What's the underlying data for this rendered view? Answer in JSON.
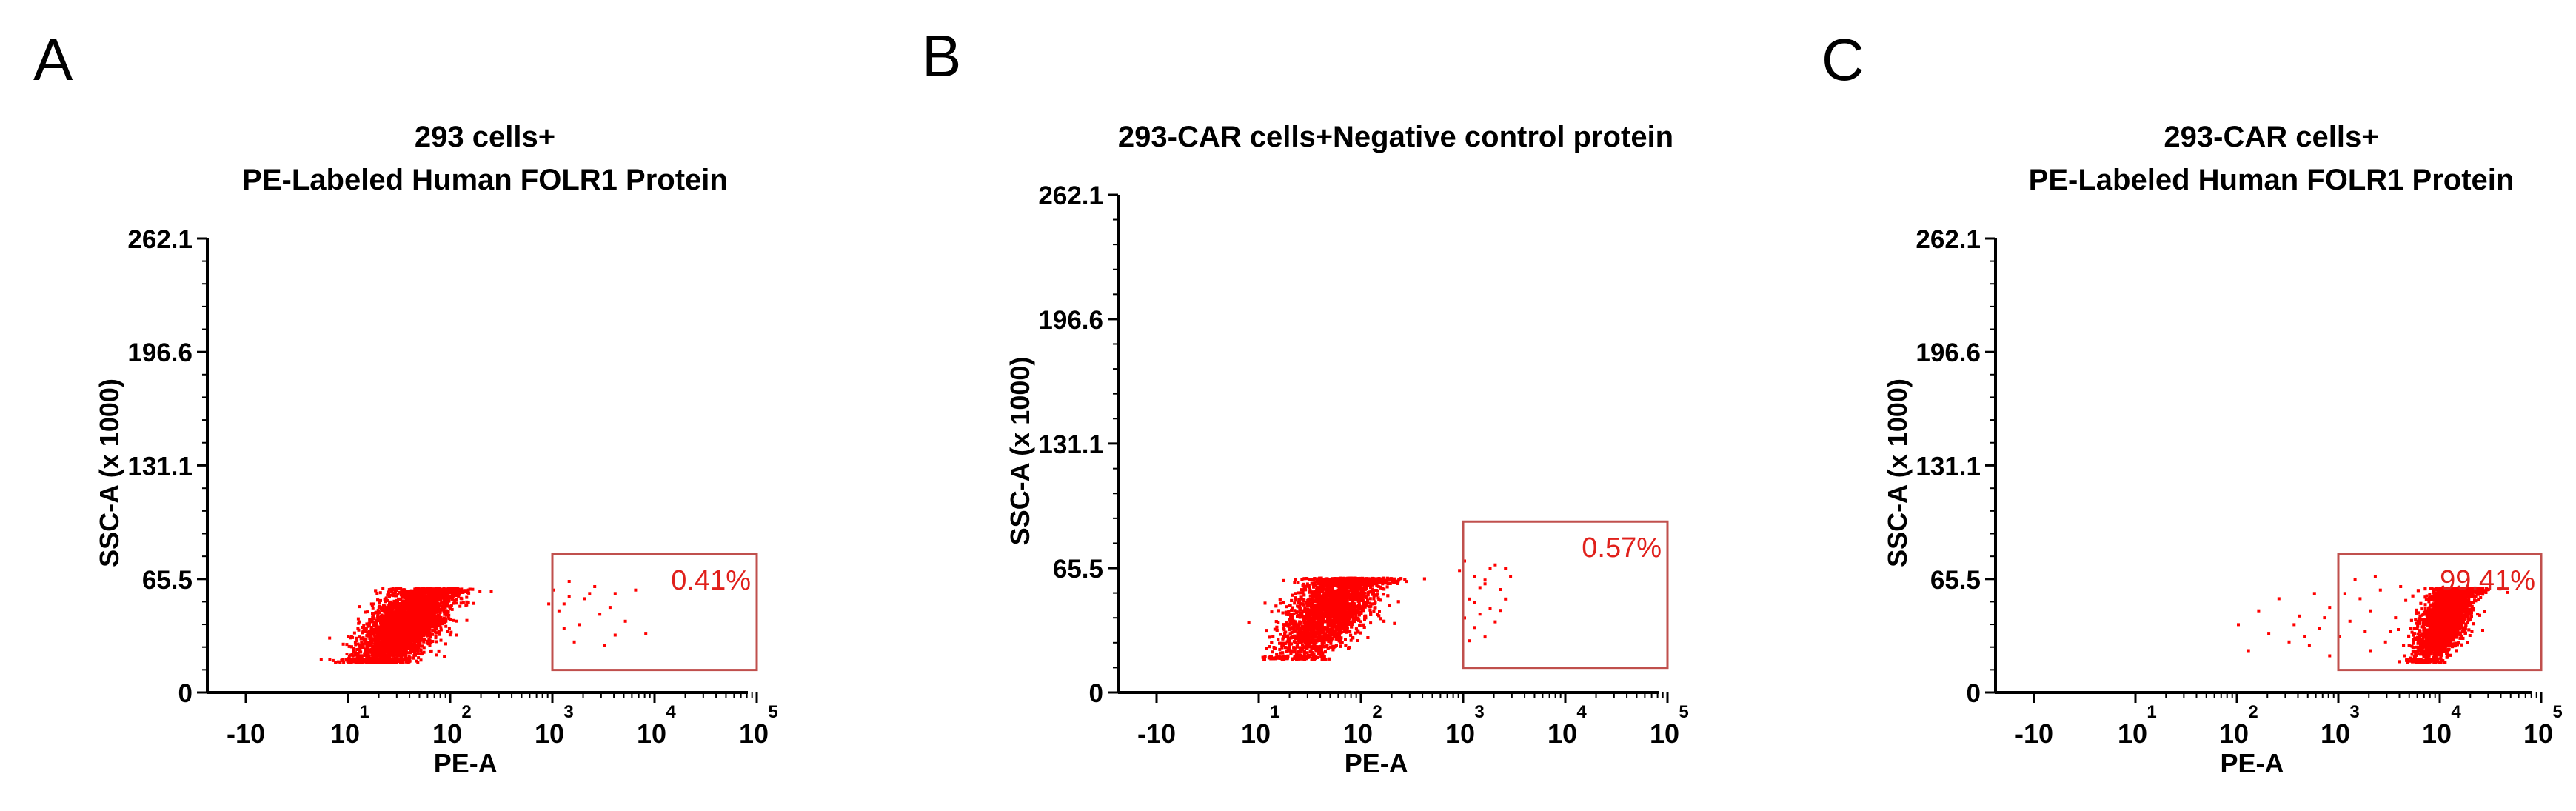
{
  "panels": [
    {
      "letter": "A"
    },
    {
      "letter": "B"
    },
    {
      "letter": "C"
    }
  ],
  "chart_data": [
    {
      "type": "scatter",
      "title_lines": [
        "293 cells+",
        "PE-Labeled Human FOLR1 Protein"
      ],
      "xlabel": "PE-A",
      "ylabel": "SSC-A (x 1000)",
      "x_scale": "log",
      "xlim": [
        "-10",
        100000
      ],
      "x_ticks": [
        {
          "base": "-10",
          "exp": ""
        },
        {
          "base": "10",
          "exp": "1"
        },
        {
          "base": "10",
          "exp": "2"
        },
        {
          "base": "10",
          "exp": "3"
        },
        {
          "base": "10",
          "exp": "4"
        },
        {
          "base": "10",
          "exp": "5"
        }
      ],
      "ylim": [
        0,
        262.1
      ],
      "y_ticks": [
        "0",
        "65.5",
        "131.1",
        "196.6",
        "262.1"
      ],
      "gate": {
        "x": [
          1000,
          100000
        ],
        "y": [
          13,
          80
        ],
        "label": "0.41%"
      },
      "point_color": "#ff0000",
      "gate_color": "#c0504d",
      "population": {
        "center_log_x": 1.55,
        "center_y": 40,
        "spread_log_x": 0.22,
        "spread_y": 13,
        "main_count": 4200,
        "sparse_points": [
          [
            3.1,
            52
          ],
          [
            3.3,
            55
          ],
          [
            3.45,
            46
          ],
          [
            3.6,
            58
          ],
          [
            3.9,
            35
          ],
          [
            3.15,
            65
          ],
          [
            3.25,
            40
          ],
          [
            3.5,
            28
          ],
          [
            3.05,
            48
          ],
          [
            3.4,
            62
          ],
          [
            3.7,
            42
          ],
          [
            3.2,
            30
          ],
          [
            3.35,
            58
          ],
          [
            3.8,
            60
          ],
          [
            3.1,
            38
          ],
          [
            2.95,
            52
          ],
          [
            3.0,
            60
          ],
          [
            3.6,
            34
          ],
          [
            3.15,
            56
          ],
          [
            3.55,
            50
          ]
        ]
      }
    },
    {
      "type": "scatter",
      "title_lines": [
        "293-CAR cells+Negative control protein"
      ],
      "xlabel": "PE-A",
      "ylabel": "SSC-A (x 1000)",
      "x_scale": "log",
      "xlim": [
        "-10",
        100000
      ],
      "x_ticks": [
        {
          "base": "-10",
          "exp": ""
        },
        {
          "base": "10",
          "exp": "1"
        },
        {
          "base": "10",
          "exp": "2"
        },
        {
          "base": "10",
          "exp": "3"
        },
        {
          "base": "10",
          "exp": "4"
        },
        {
          "base": "10",
          "exp": "5"
        }
      ],
      "ylim": [
        0,
        262.1
      ],
      "y_ticks": [
        "0",
        "65.5",
        "131.1",
        "196.6",
        "262.1"
      ],
      "gate": {
        "x": [
          1000,
          100000
        ],
        "y": [
          13,
          90
        ],
        "label": "0.57%"
      },
      "point_color": "#ff0000",
      "gate_color": "#c0504d",
      "population": {
        "center_log_x": 1.7,
        "center_y": 46,
        "spread_log_x": 0.24,
        "spread_y": 14,
        "main_count": 4500,
        "sparse_points": [
          [
            3.0,
            70
          ],
          [
            3.1,
            62
          ],
          [
            3.2,
            58
          ],
          [
            3.3,
            68
          ],
          [
            3.4,
            66
          ],
          [
            3.05,
            50
          ],
          [
            3.15,
            42
          ],
          [
            3.25,
            45
          ],
          [
            3.1,
            35
          ],
          [
            3.2,
            30
          ],
          [
            3.35,
            55
          ],
          [
            3.0,
            40
          ],
          [
            3.45,
            62
          ],
          [
            3.3,
            38
          ],
          [
            3.1,
            48
          ],
          [
            2.95,
            65
          ],
          [
            3.2,
            60
          ],
          [
            3.05,
            28
          ],
          [
            3.4,
            50
          ],
          [
            3.15,
            56
          ],
          [
            3.25,
            66
          ],
          [
            3.35,
            44
          ]
        ]
      }
    },
    {
      "type": "scatter",
      "title_lines": [
        "293-CAR cells+",
        "PE-Labeled Human FOLR1 Protein"
      ],
      "xlabel": "PE-A",
      "ylabel": "SSC-A (x 1000)",
      "x_scale": "log",
      "xlim": [
        "-10",
        100000
      ],
      "x_ticks": [
        {
          "base": "-10",
          "exp": ""
        },
        {
          "base": "10",
          "exp": "1"
        },
        {
          "base": "10",
          "exp": "2"
        },
        {
          "base": "10",
          "exp": "3"
        },
        {
          "base": "10",
          "exp": "4"
        },
        {
          "base": "10",
          "exp": "5"
        }
      ],
      "ylim": [
        0,
        262.1
      ],
      "y_ticks": [
        "0",
        "65.5",
        "131.1",
        "196.6",
        "262.1"
      ],
      "gate": {
        "x": [
          1000,
          100000
        ],
        "y": [
          13,
          80
        ],
        "label": "99.41%"
      },
      "point_color": "#ff0000",
      "gate_color": "#c0504d",
      "population": {
        "center_log_x": 4.05,
        "center_y": 45,
        "spread_log_x": 0.14,
        "spread_y": 13,
        "main_count": 4500,
        "sparse_points": [
          [
            2.0,
            40
          ],
          [
            2.1,
            25
          ],
          [
            2.3,
            35
          ],
          [
            2.5,
            30
          ],
          [
            2.6,
            45
          ],
          [
            2.7,
            28
          ],
          [
            2.8,
            38
          ],
          [
            2.9,
            50
          ],
          [
            3.0,
            33
          ],
          [
            3.1,
            42
          ],
          [
            3.2,
            55
          ],
          [
            3.3,
            48
          ],
          [
            3.4,
            60
          ],
          [
            3.5,
            36
          ],
          [
            2.4,
            55
          ],
          [
            2.2,
            48
          ],
          [
            2.9,
            22
          ],
          [
            3.3,
            25
          ],
          [
            3.6,
            62
          ],
          [
            2.75,
            58
          ],
          [
            3.15,
            66
          ],
          [
            3.45,
            30
          ],
          [
            2.55,
            40
          ],
          [
            3.05,
            58
          ],
          [
            3.25,
            36
          ],
          [
            3.55,
            44
          ],
          [
            2.85,
            44
          ],
          [
            3.35,
            68
          ],
          [
            2.65,
            33
          ],
          [
            3.65,
            54
          ]
        ]
      }
    }
  ]
}
